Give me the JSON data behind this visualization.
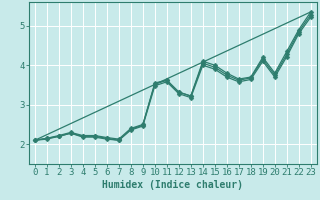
{
  "xlabel": "Humidex (Indice chaleur)",
  "ylabel": "",
  "bg_color": "#c8eaea",
  "grid_color": "#ffffff",
  "line_color": "#2e7d6e",
  "xlim": [
    -0.5,
    23.5
  ],
  "ylim": [
    1.5,
    5.6
  ],
  "xticks": [
    0,
    1,
    2,
    3,
    4,
    5,
    6,
    7,
    8,
    9,
    10,
    11,
    12,
    13,
    14,
    15,
    16,
    17,
    18,
    19,
    20,
    21,
    22,
    23
  ],
  "yticks": [
    2,
    3,
    4,
    5
  ],
  "data_lines": [
    {
      "x": [
        0,
        1,
        2,
        3,
        4,
        5,
        6,
        7,
        8,
        9,
        10,
        11,
        12,
        13,
        14,
        15,
        16,
        17,
        18,
        19,
        20,
        21,
        22,
        23
      ],
      "y": [
        2.1,
        2.15,
        2.2,
        2.28,
        2.2,
        2.2,
        2.15,
        2.1,
        2.38,
        2.48,
        3.55,
        3.62,
        3.32,
        3.22,
        4.1,
        4.0,
        3.8,
        3.65,
        3.7,
        4.2,
        3.8,
        4.35,
        4.9,
        5.35
      ]
    },
    {
      "x": [
        0,
        1,
        2,
        3,
        4,
        5,
        6,
        7,
        8,
        9,
        10,
        11,
        12,
        13,
        14,
        15,
        16,
        17,
        18,
        19,
        20,
        21,
        22,
        23
      ],
      "y": [
        2.1,
        2.15,
        2.22,
        2.3,
        2.22,
        2.22,
        2.17,
        2.13,
        2.4,
        2.5,
        3.52,
        3.62,
        3.32,
        3.22,
        4.05,
        3.95,
        3.75,
        3.62,
        3.68,
        4.15,
        3.75,
        4.28,
        4.85,
        5.28
      ]
    },
    {
      "x": [
        0,
        1,
        2,
        3,
        4,
        5,
        6,
        7,
        8,
        9,
        10,
        11,
        12,
        13,
        14,
        15,
        16,
        17,
        18,
        19,
        20,
        21,
        22,
        23
      ],
      "y": [
        2.1,
        2.13,
        2.2,
        2.28,
        2.18,
        2.18,
        2.13,
        2.1,
        2.36,
        2.46,
        3.48,
        3.58,
        3.28,
        3.18,
        4.0,
        3.9,
        3.7,
        3.58,
        3.64,
        4.1,
        3.7,
        4.22,
        4.8,
        5.22
      ]
    }
  ],
  "diag_line": {
    "x": [
      0,
      23
    ],
    "y": [
      2.1,
      5.35
    ]
  },
  "marker": "D",
  "markersize": 2.5,
  "linewidth": 0.9,
  "diag_linewidth": 0.9,
  "axis_color": "#2e7d6e",
  "tick_color": "#2e7d6e",
  "xlabel_color": "#2e7d6e",
  "xlabel_fontsize": 7,
  "tick_fontsize": 6.5
}
